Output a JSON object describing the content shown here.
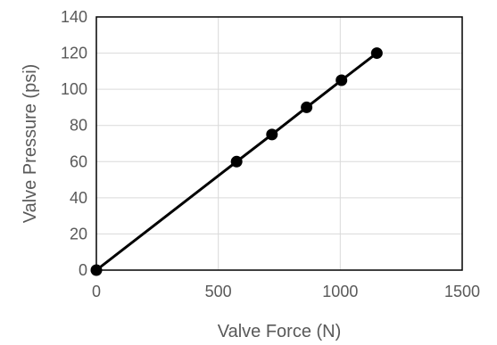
{
  "chart_data": {
    "type": "scatter",
    "title": "",
    "xlabel": "Valve Force (N)",
    "ylabel": "Valve Pressure (psi)",
    "xlim": [
      0,
      1500
    ],
    "ylim": [
      0,
      140
    ],
    "x_ticks": [
      0,
      500,
      1000,
      1500
    ],
    "y_ticks": [
      0,
      20,
      40,
      60,
      80,
      100,
      120,
      140
    ],
    "grid": true,
    "legend": "none",
    "series": [
      {
        "x": [
          0,
          575,
          720,
          862,
          1005,
          1150
        ],
        "y": [
          0,
          60,
          75,
          90,
          105,
          120
        ],
        "marker": "circle",
        "line": "straight",
        "color": "#000000"
      }
    ],
    "colors": {
      "grid": "#d9d9d9",
      "frame": "#000000",
      "text": "#595959"
    }
  }
}
